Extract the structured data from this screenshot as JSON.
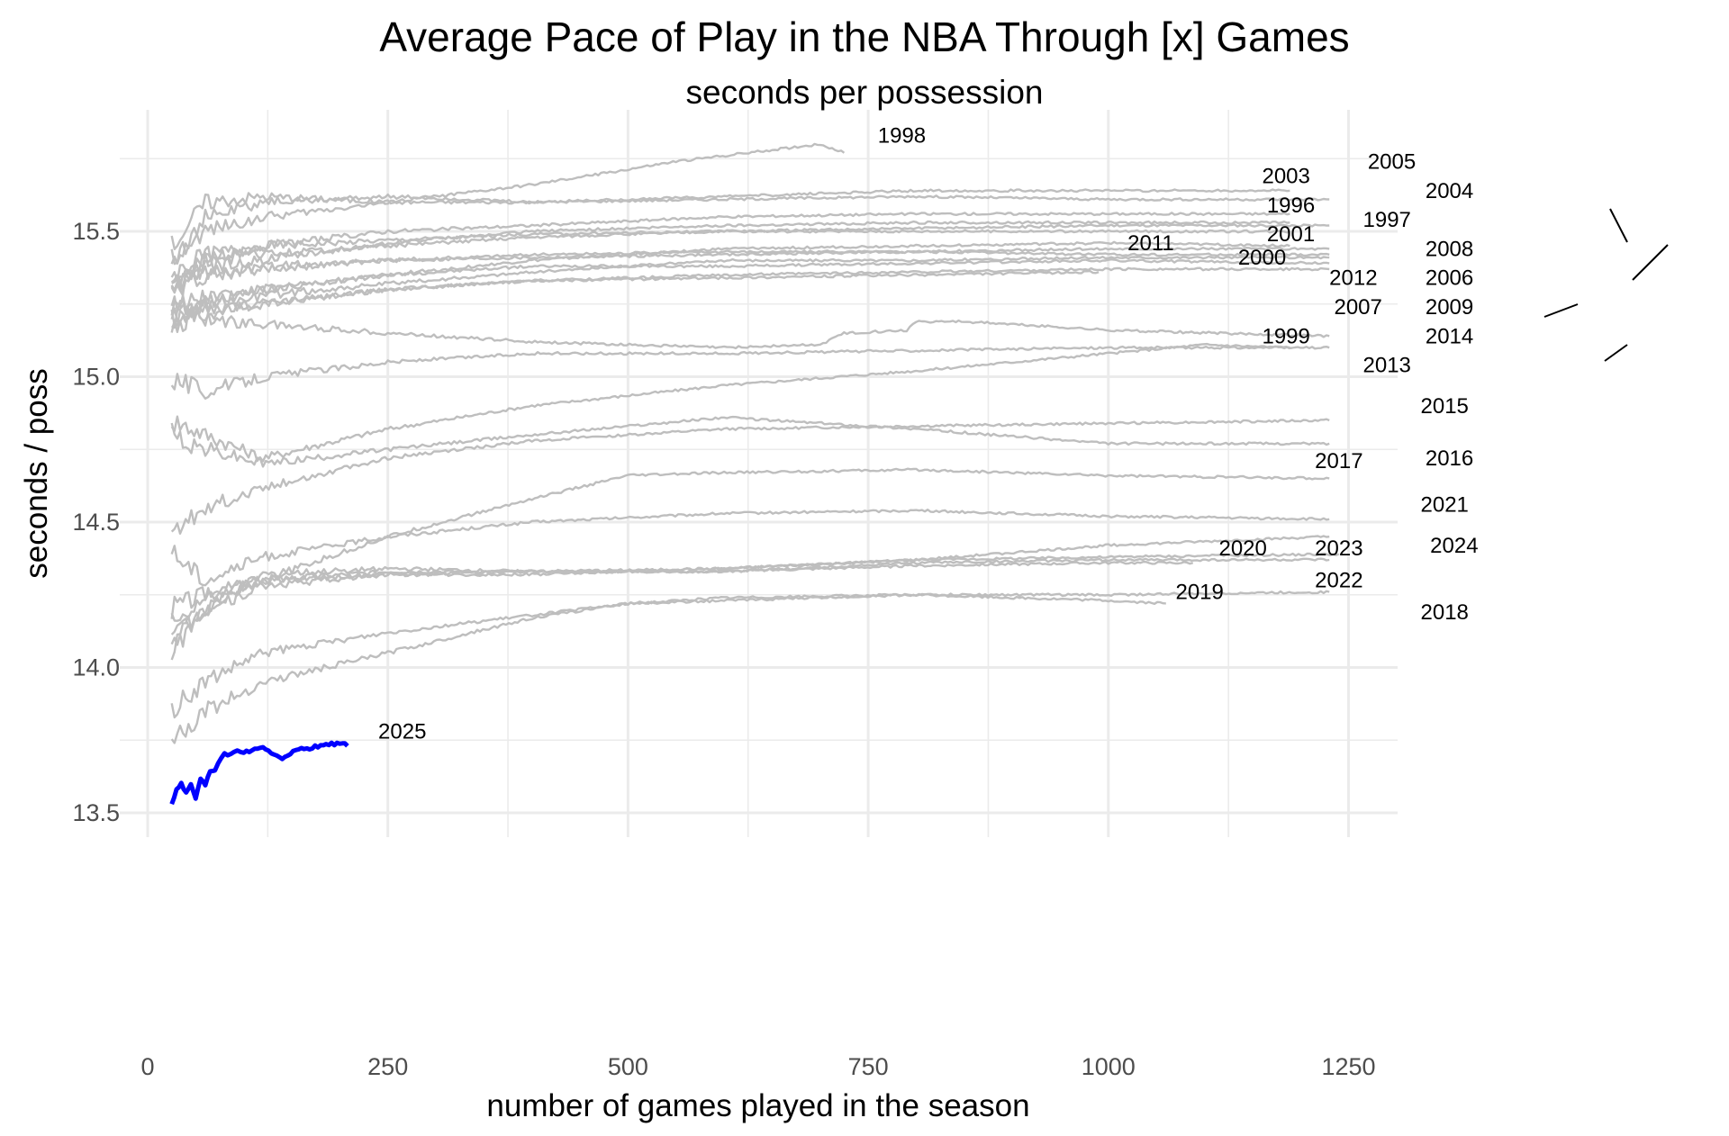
{
  "chart_data": {
    "type": "line",
    "title": "Average Pace of Play in the NBA Through [x] Games",
    "subtitle": "seconds per possession",
    "xlabel": "number of games played in the season",
    "ylabel": "seconds / poss",
    "xlim": [
      -20,
      1300
    ],
    "ylim": [
      13.43,
      15.9
    ],
    "x_ticks": [
      0,
      250,
      500,
      750,
      1000,
      1250
    ],
    "x_tick_labels": [
      "0",
      "250",
      "500",
      "750",
      "1000",
      "1250"
    ],
    "y_ticks": [
      13.5,
      14.0,
      14.5,
      15.0,
      15.5
    ],
    "y_tick_labels": [
      "13.5",
      "14.0",
      "14.5",
      "15.0",
      "15.5"
    ],
    "grid": true,
    "legend": "none (direct labels)",
    "default_color": "#bebebe",
    "highlight_color": "#0000ff",
    "series": [
      {
        "name": "1996",
        "x": [
          25,
          60,
          120,
          250,
          400,
          600,
          800,
          1000,
          1189
        ],
        "y": [
          15.35,
          15.42,
          15.45,
          15.5,
          15.52,
          15.55,
          15.56,
          15.56,
          15.56
        ]
      },
      {
        "name": "1997",
        "x": [
          25,
          60,
          120,
          250,
          400,
          600,
          800,
          1000,
          1189
        ],
        "y": [
          15.3,
          15.38,
          15.4,
          15.46,
          15.5,
          15.52,
          15.53,
          15.53,
          15.53
        ]
      },
      {
        "name": "1998",
        "x": [
          25,
          60,
          120,
          250,
          400,
          550,
          650,
          700,
          725
        ],
        "y": [
          15.4,
          15.5,
          15.55,
          15.6,
          15.66,
          15.74,
          15.78,
          15.8,
          15.77
        ]
      },
      {
        "name": "1999",
        "x": [
          25,
          60,
          120,
          250,
          400,
          600,
          800,
          1000,
          1100,
          1189
        ],
        "y": [
          14.85,
          14.8,
          14.72,
          14.82,
          14.9,
          14.97,
          15.02,
          15.08,
          15.11,
          15.1
        ]
      },
      {
        "name": "2000",
        "x": [
          25,
          60,
          120,
          250,
          400,
          600,
          800,
          1000,
          1189
        ],
        "y": [
          15.15,
          15.25,
          15.3,
          15.35,
          15.4,
          15.44,
          15.45,
          15.46,
          15.45
        ]
      },
      {
        "name": "2001",
        "x": [
          25,
          60,
          120,
          250,
          400,
          600,
          800,
          1000,
          1189
        ],
        "y": [
          15.3,
          15.4,
          15.45,
          15.47,
          15.49,
          15.5,
          15.5,
          15.5,
          15.5
        ]
      },
      {
        "name": "2003",
        "x": [
          25,
          60,
          120,
          250,
          400,
          600,
          800,
          1000,
          1189
        ],
        "y": [
          15.4,
          15.55,
          15.6,
          15.62,
          15.6,
          15.62,
          15.64,
          15.64,
          15.64
        ]
      },
      {
        "name": "2004",
        "x": [
          25,
          60,
          120,
          250,
          400,
          600,
          800,
          1000,
          1230
        ],
        "y": [
          15.3,
          15.4,
          15.42,
          15.45,
          15.48,
          15.5,
          15.51,
          15.52,
          15.52
        ]
      },
      {
        "name": "2005",
        "x": [
          25,
          60,
          120,
          250,
          400,
          600,
          800,
          1000,
          1230
        ],
        "y": [
          15.45,
          15.6,
          15.62,
          15.6,
          15.6,
          15.61,
          15.62,
          15.61,
          15.61
        ]
      },
      {
        "name": "2006",
        "x": [
          25,
          60,
          120,
          250,
          400,
          600,
          800,
          1000,
          1230
        ],
        "y": [
          15.2,
          15.25,
          15.28,
          15.32,
          15.36,
          15.4,
          15.4,
          15.41,
          15.41
        ]
      },
      {
        "name": "2007",
        "x": [
          25,
          60,
          120,
          250,
          400,
          600,
          800,
          1000,
          1230
        ],
        "y": [
          15.2,
          15.22,
          15.25,
          15.3,
          15.33,
          15.35,
          15.36,
          15.37,
          15.37
        ]
      },
      {
        "name": "2008",
        "x": [
          25,
          60,
          120,
          250,
          400,
          600,
          800,
          1000,
          1230
        ],
        "y": [
          15.3,
          15.35,
          15.38,
          15.4,
          15.42,
          15.43,
          15.43,
          15.44,
          15.44
        ]
      },
      {
        "name": "2009",
        "x": [
          25,
          60,
          120,
          250,
          400,
          600,
          800,
          1000,
          1230
        ],
        "y": [
          15.25,
          15.28,
          15.3,
          15.35,
          15.38,
          15.38,
          15.39,
          15.4,
          15.39
        ]
      },
      {
        "name": "2011",
        "x": [
          25,
          60,
          120,
          250,
          400,
          600,
          800,
          1000,
          1230
        ],
        "y": [
          15.3,
          15.35,
          15.37,
          15.4,
          15.41,
          15.42,
          15.43,
          15.42,
          15.42
        ]
      },
      {
        "name": "2012",
        "x": [
          25,
          60,
          120,
          250,
          400,
          600,
          800,
          990
        ],
        "y": [
          15.2,
          15.22,
          15.25,
          15.3,
          15.33,
          15.34,
          15.35,
          15.36
        ]
      },
      {
        "name": "2013",
        "x": [
          25,
          60,
          120,
          250,
          400,
          600,
          800,
          1000,
          1230
        ],
        "y": [
          15.0,
          14.95,
          15.0,
          15.05,
          15.08,
          15.08,
          15.09,
          15.1,
          15.1
        ]
      },
      {
        "name": "2014",
        "x": [
          25,
          60,
          120,
          250,
          400,
          600,
          700,
          725,
          790,
          800,
          850,
          1000,
          1230
        ],
        "y": [
          15.25,
          15.2,
          15.18,
          15.15,
          15.12,
          15.1,
          15.11,
          15.15,
          15.16,
          15.19,
          15.19,
          15.16,
          15.14
        ]
      },
      {
        "name": "2015",
        "x": [
          25,
          60,
          120,
          250,
          400,
          600,
          800,
          1000,
          1230
        ],
        "y": [
          14.45,
          14.55,
          14.62,
          14.72,
          14.78,
          14.82,
          14.83,
          14.84,
          14.85
        ]
      },
      {
        "name": "2016",
        "x": [
          25,
          60,
          120,
          250,
          400,
          600,
          800,
          1000,
          1230
        ],
        "y": [
          14.8,
          14.75,
          14.7,
          14.75,
          14.8,
          14.86,
          14.82,
          14.77,
          14.77
        ]
      },
      {
        "name": "2017",
        "x": [
          25,
          60,
          120,
          250,
          400,
          500,
          600,
          800,
          1000,
          1230
        ],
        "y": [
          14.1,
          14.2,
          14.3,
          14.45,
          14.58,
          14.66,
          14.67,
          14.68,
          14.66,
          14.65
        ]
      },
      {
        "name": "2018",
        "x": [
          25,
          60,
          120,
          250,
          400,
          500,
          600,
          800,
          1000,
          1230
        ],
        "y": [
          13.75,
          13.85,
          13.95,
          14.05,
          14.17,
          14.22,
          14.23,
          14.25,
          14.25,
          14.26
        ]
      },
      {
        "name": "2019",
        "x": [
          25,
          60,
          120,
          250,
          400,
          500,
          600,
          800,
          1000,
          1060
        ],
        "y": [
          13.85,
          13.95,
          14.05,
          14.12,
          14.18,
          14.22,
          14.24,
          14.25,
          14.23,
          14.22
        ]
      },
      {
        "name": "2020",
        "x": [
          25,
          60,
          120,
          250,
          400,
          600,
          800,
          1000,
          1088
        ],
        "y": [
          14.2,
          14.25,
          14.3,
          14.33,
          14.33,
          14.33,
          14.35,
          14.36,
          14.36
        ]
      },
      {
        "name": "2021",
        "x": [
          25,
          60,
          120,
          250,
          400,
          600,
          800,
          1000,
          1230
        ],
        "y": [
          14.4,
          14.3,
          14.38,
          14.45,
          14.5,
          14.53,
          14.54,
          14.52,
          14.51
        ]
      },
      {
        "name": "2022",
        "x": [
          25,
          60,
          120,
          250,
          400,
          600,
          800,
          1000,
          1230
        ],
        "y": [
          14.1,
          14.2,
          14.28,
          14.32,
          14.33,
          14.33,
          14.36,
          14.37,
          14.37
        ]
      },
      {
        "name": "2023",
        "x": [
          25,
          60,
          120,
          250,
          400,
          600,
          800,
          1000,
          1240
        ],
        "y": [
          14.15,
          14.25,
          14.3,
          14.32,
          14.32,
          14.34,
          14.37,
          14.38,
          14.39
        ]
      },
      {
        "name": "2024",
        "x": [
          25,
          60,
          120,
          250,
          400,
          600,
          800,
          1000,
          1230
        ],
        "y": [
          14.05,
          14.2,
          14.32,
          14.34,
          14.33,
          14.34,
          14.37,
          14.42,
          14.45
        ]
      },
      {
        "name": "2025",
        "x": [
          25,
          30,
          35,
          40,
          45,
          50,
          55,
          60,
          65,
          70,
          80,
          90,
          100,
          120,
          140,
          160,
          180,
          200,
          208
        ],
        "y": [
          13.53,
          13.58,
          13.6,
          13.57,
          13.6,
          13.55,
          13.62,
          13.6,
          13.64,
          13.65,
          13.7,
          13.71,
          13.71,
          13.72,
          13.69,
          13.72,
          13.73,
          13.74,
          13.73
        ],
        "highlight": true
      }
    ],
    "labels": [
      {
        "text": "1998",
        "x": 760,
        "y": 15.83
      },
      {
        "text": "2003",
        "x": 1160,
        "y": 15.69
      },
      {
        "text": "2005",
        "x": 1270,
        "y": 15.74
      },
      {
        "text": "2004",
        "x": 1330,
        "y": 15.64
      },
      {
        "text": "1996",
        "x": 1165,
        "y": 15.59
      },
      {
        "text": "1997",
        "x": 1265,
        "y": 15.54
      },
      {
        "text": "2001",
        "x": 1165,
        "y": 15.49
      },
      {
        "text": "2011",
        "x": 1020,
        "y": 15.46
      },
      {
        "text": "2008",
        "x": 1330,
        "y": 15.44
      },
      {
        "text": "2000",
        "x": 1135,
        "y": 15.41
      },
      {
        "text": "2012",
        "x": 1230,
        "y": 15.34
      },
      {
        "text": "2006",
        "x": 1330,
        "y": 15.34
      },
      {
        "text": "2007",
        "x": 1235,
        "y": 15.24
      },
      {
        "text": "2009",
        "x": 1330,
        "y": 15.24
      },
      {
        "text": "1999",
        "x": 1160,
        "y": 15.14
      },
      {
        "text": "2014",
        "x": 1330,
        "y": 15.14
      },
      {
        "text": "2013",
        "x": 1265,
        "y": 15.04
      },
      {
        "text": "2015",
        "x": 1325,
        "y": 14.9
      },
      {
        "text": "2017",
        "x": 1215,
        "y": 14.71
      },
      {
        "text": "2016",
        "x": 1330,
        "y": 14.72
      },
      {
        "text": "2021",
        "x": 1325,
        "y": 14.56
      },
      {
        "text": "2024",
        "x": 1335,
        "y": 14.42
      },
      {
        "text": "2020",
        "x": 1115,
        "y": 14.41
      },
      {
        "text": "2023",
        "x": 1215,
        "y": 14.41
      },
      {
        "text": "2022",
        "x": 1215,
        "y": 14.3
      },
      {
        "text": "2019",
        "x": 1070,
        "y": 14.26
      },
      {
        "text": "2018",
        "x": 1325,
        "y": 14.19
      },
      {
        "text": "2025",
        "x": 240,
        "y": 13.78
      }
    ]
  }
}
